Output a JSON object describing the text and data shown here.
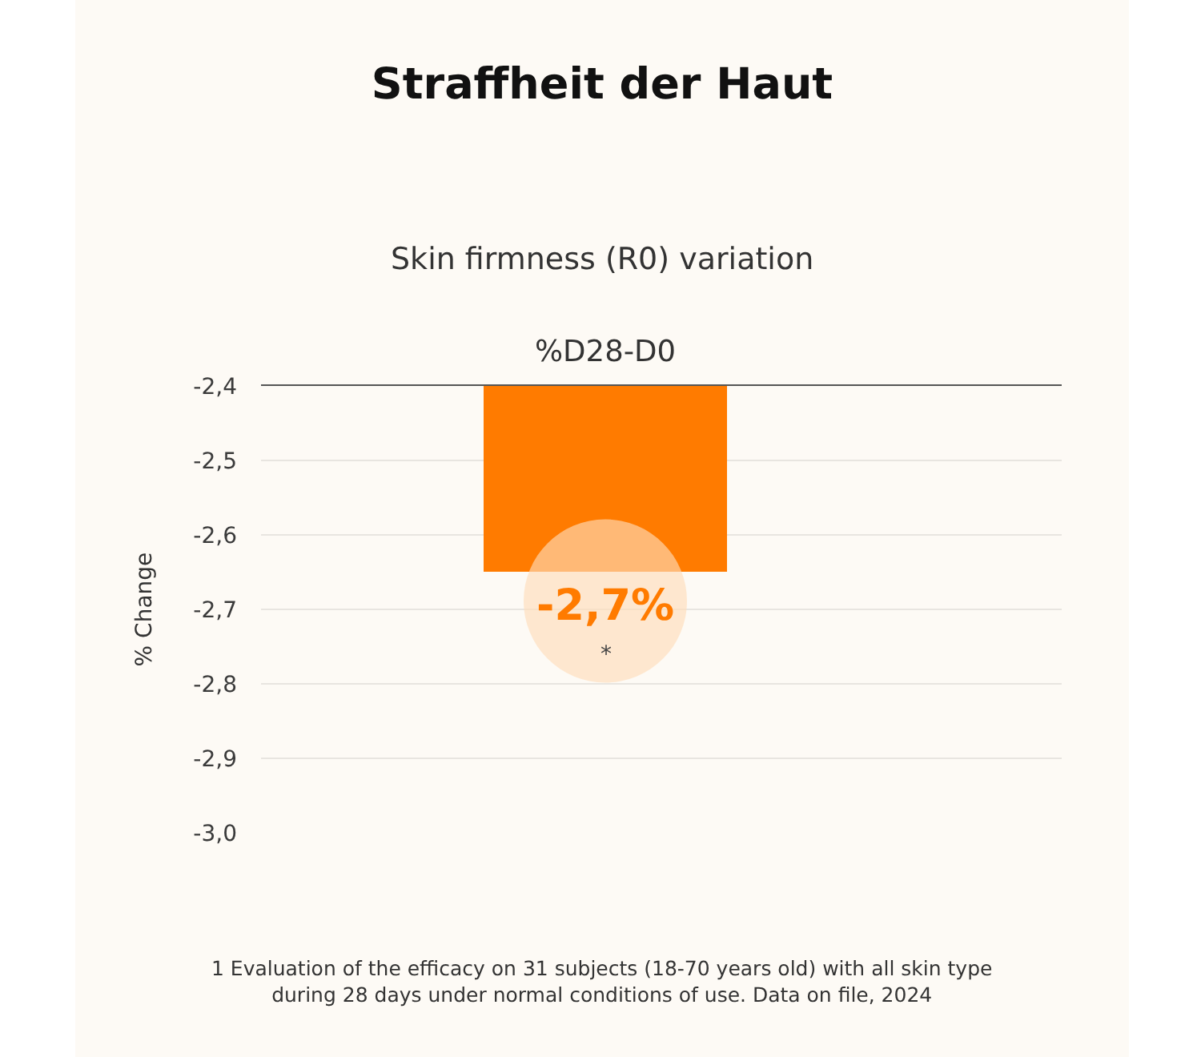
{
  "chart_data": {
    "type": "bar",
    "title": "Straffheit der Haut",
    "subtitle": "Skin firmness (R0) variation",
    "ylabel": "% Change",
    "categories": [
      "%D28-D0"
    ],
    "values": [
      -2.65
    ],
    "color": "#ff7b00",
    "value_labels": [
      "-2,7%"
    ],
    "ylim": [
      -3.0,
      -2.4
    ],
    "yticks": [
      {
        "value": -2.4,
        "label": "-2,4"
      },
      {
        "value": -2.5,
        "label": "-2,5"
      },
      {
        "value": -2.6,
        "label": "-2,6"
      },
      {
        "value": -2.7,
        "label": "-2,7"
      },
      {
        "value": -2.8,
        "label": "-2,8"
      },
      {
        "value": -2.9,
        "label": "-2,9"
      },
      {
        "value": -3.0,
        "label": "-3,0"
      }
    ],
    "grid": "y",
    "annotations": [
      "*",
      "1 Evaluation of the efficacy on 31 subjects (18-70 years old) with all skin type during 28 days under normal conditions of use. Data on file, 2024"
    ]
  }
}
